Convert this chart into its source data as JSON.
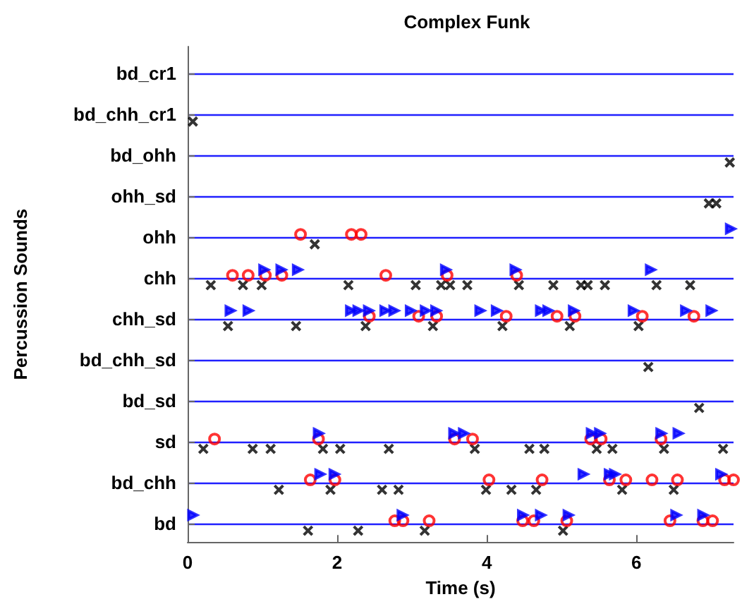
{
  "chart_data": {
    "type": "scatter",
    "orientation": "horizontal",
    "title": "Complex Funk",
    "xlabel": "Time (s)",
    "ylabel": "Percussion Sounds",
    "categories": [
      "bd_cr1",
      "bd_chh_cr1",
      "bd_ohh",
      "ohh_sd",
      "ohh",
      "chh",
      "chh_sd",
      "bd_chh_sd",
      "bd_sd",
      "sd",
      "bd_chh",
      "bd"
    ],
    "xlim": [
      0,
      7.3
    ],
    "xticks": [
      0,
      2,
      4,
      6
    ],
    "grid": "y",
    "series": [
      {
        "color": "#000000",
        "marker": "cross",
        "values": [
          null,
          0.07,
          7.25,
          6.97,
          1.7,
          0.31,
          0.54,
          6.16,
          6.84,
          0.21,
          1.22,
          1.61
        ]
      },
      {
        "color": "#000000",
        "marker": "cross",
        "values": [
          null,
          null,
          null,
          7.07,
          null,
          0.74,
          1.45,
          null,
          null,
          0.87,
          1.91,
          2.28
        ]
      },
      {
        "color": "#000000",
        "marker": "cross",
        "values": [
          null,
          null,
          null,
          null,
          null,
          0.99,
          2.38,
          null,
          null,
          1.11,
          2.6,
          3.17
        ]
      },
      {
        "color": "#000000",
        "marker": "cross",
        "values": [
          null,
          null,
          null,
          null,
          null,
          2.15,
          3.28,
          null,
          null,
          1.81,
          2.82,
          5.02
        ]
      },
      {
        "color": "#000000",
        "marker": "cross",
        "values": [
          null,
          null,
          null,
          null,
          null,
          3.05,
          4.21,
          null,
          null,
          2.04,
          3.99,
          null
        ]
      },
      {
        "color": "#000000",
        "marker": "cross",
        "values": [
          null,
          null,
          null,
          null,
          null,
          3.39,
          5.11,
          null,
          null,
          2.69,
          4.33,
          null
        ]
      },
      {
        "color": "#000000",
        "marker": "cross",
        "values": [
          null,
          null,
          null,
          null,
          null,
          3.51,
          6.03,
          null,
          null,
          3.84,
          4.66,
          null
        ]
      },
      {
        "color": "#000000",
        "marker": "cross",
        "values": [
          null,
          null,
          null,
          null,
          null,
          3.74,
          null,
          null,
          null,
          4.57,
          5.81,
          null
        ]
      },
      {
        "color": "#000000",
        "marker": "cross",
        "values": [
          null,
          null,
          null,
          null,
          null,
          4.43,
          null,
          null,
          null,
          4.77,
          6.5,
          null
        ]
      },
      {
        "color": "#000000",
        "marker": "cross",
        "values": [
          null,
          null,
          null,
          null,
          null,
          4.89,
          null,
          null,
          null,
          5.47,
          null,
          null
        ]
      },
      {
        "color": "#000000",
        "marker": "cross",
        "values": [
          null,
          null,
          null,
          null,
          null,
          5.26,
          null,
          null,
          null,
          5.68,
          null,
          null
        ]
      },
      {
        "color": "#000000",
        "marker": "cross",
        "values": [
          null,
          null,
          null,
          null,
          null,
          5.35,
          null,
          null,
          null,
          6.37,
          null,
          null
        ]
      },
      {
        "color": "#000000",
        "marker": "cross",
        "values": [
          null,
          null,
          null,
          null,
          null,
          5.58,
          null,
          null,
          null,
          7.16,
          null,
          null
        ]
      },
      {
        "color": "#000000",
        "marker": "cross",
        "values": [
          null,
          null,
          null,
          null,
          null,
          6.27,
          null,
          null,
          null,
          null,
          null,
          null
        ]
      },
      {
        "color": "#000000",
        "marker": "cross",
        "values": [
          null,
          null,
          null,
          null,
          null,
          6.72,
          null,
          null,
          null,
          null,
          null,
          null
        ]
      },
      {
        "color": "#ff0000",
        "marker": "circle",
        "values": [
          null,
          null,
          null,
          null,
          1.51,
          0.6,
          2.43,
          null,
          null,
          0.36,
          1.64,
          2.77
        ]
      },
      {
        "color": "#ff0000",
        "marker": "circle",
        "values": [
          null,
          null,
          null,
          null,
          2.19,
          0.81,
          3.09,
          null,
          null,
          1.75,
          1.97,
          2.88
        ]
      },
      {
        "color": "#ff0000",
        "marker": "circle",
        "values": [
          null,
          null,
          null,
          null,
          2.32,
          1.04,
          3.33,
          null,
          null,
          3.57,
          4.03,
          3.23
        ]
      },
      {
        "color": "#ff0000",
        "marker": "circle",
        "values": [
          null,
          null,
          null,
          null,
          null,
          1.26,
          4.26,
          null,
          null,
          3.81,
          4.74,
          4.48
        ]
      },
      {
        "color": "#ff0000",
        "marker": "circle",
        "values": [
          null,
          null,
          null,
          null,
          null,
          2.65,
          4.94,
          null,
          null,
          5.39,
          5.64,
          4.63
        ]
      },
      {
        "color": "#ff0000",
        "marker": "circle",
        "values": [
          null,
          null,
          null,
          null,
          null,
          3.47,
          5.18,
          null,
          null,
          5.53,
          5.86,
          5.07
        ]
      },
      {
        "color": "#ff0000",
        "marker": "circle",
        "values": [
          null,
          null,
          null,
          null,
          null,
          4.4,
          6.08,
          null,
          null,
          6.33,
          6.21,
          6.45
        ]
      },
      {
        "color": "#ff0000",
        "marker": "circle",
        "values": [
          null,
          null,
          null,
          null,
          null,
          null,
          6.77,
          null,
          null,
          null,
          6.55,
          6.89
        ]
      },
      {
        "color": "#ff0000",
        "marker": "circle",
        "values": [
          null,
          null,
          null,
          null,
          null,
          null,
          null,
          null,
          null,
          null,
          7.18,
          7.02
        ]
      },
      {
        "color": "#ff0000",
        "marker": "circle",
        "values": [
          null,
          null,
          null,
          null,
          null,
          null,
          null,
          null,
          null,
          null,
          7.3,
          null
        ]
      },
      {
        "color": "#0000ff",
        "marker": "triangle",
        "values": [
          null,
          null,
          null,
          null,
          7.26,
          1.02,
          0.57,
          null,
          null,
          1.75,
          1.77,
          0.07
        ]
      },
      {
        "color": "#0000ff",
        "marker": "triangle",
        "values": [
          null,
          null,
          null,
          null,
          null,
          1.25,
          0.81,
          null,
          null,
          3.56,
          1.96,
          2.87
        ]
      },
      {
        "color": "#0000ff",
        "marker": "triangle",
        "values": [
          null,
          null,
          null,
          null,
          null,
          1.47,
          2.18,
          null,
          null,
          3.69,
          5.29,
          4.48
        ]
      },
      {
        "color": "#0000ff",
        "marker": "triangle",
        "values": [
          null,
          null,
          null,
          null,
          null,
          3.45,
          2.28,
          null,
          null,
          5.4,
          5.64,
          4.72
        ]
      },
      {
        "color": "#0000ff",
        "marker": "triangle",
        "values": [
          null,
          null,
          null,
          null,
          null,
          4.38,
          2.42,
          null,
          null,
          5.51,
          5.71,
          5.09
        ]
      },
      {
        "color": "#0000ff",
        "marker": "triangle",
        "values": [
          null,
          null,
          null,
          null,
          null,
          6.19,
          2.64,
          null,
          null,
          6.33,
          7.13,
          6.53
        ]
      },
      {
        "color": "#0000ff",
        "marker": "triangle",
        "values": [
          null,
          null,
          null,
          null,
          null,
          null,
          2.76,
          null,
          null,
          6.56,
          null,
          6.89
        ]
      },
      {
        "color": "#0000ff",
        "marker": "triangle",
        "values": [
          null,
          null,
          null,
          null,
          null,
          null,
          2.98,
          null,
          null,
          null,
          null,
          null
        ]
      },
      {
        "color": "#0000ff",
        "marker": "triangle",
        "values": [
          null,
          null,
          null,
          null,
          null,
          null,
          3.18,
          null,
          null,
          null,
          null,
          null
        ]
      },
      {
        "color": "#0000ff",
        "marker": "triangle",
        "values": [
          null,
          null,
          null,
          null,
          null,
          null,
          3.32,
          null,
          null,
          null,
          null,
          null
        ]
      },
      {
        "color": "#0000ff",
        "marker": "triangle",
        "values": [
          null,
          null,
          null,
          null,
          null,
          null,
          3.91,
          null,
          null,
          null,
          null,
          null
        ]
      },
      {
        "color": "#0000ff",
        "marker": "triangle",
        "values": [
          null,
          null,
          null,
          null,
          null,
          null,
          4.13,
          null,
          null,
          null,
          null,
          null
        ]
      },
      {
        "color": "#0000ff",
        "marker": "triangle",
        "values": [
          null,
          null,
          null,
          null,
          null,
          null,
          4.72,
          null,
          null,
          null,
          null,
          null
        ]
      },
      {
        "color": "#0000ff",
        "marker": "triangle",
        "values": [
          null,
          null,
          null,
          null,
          null,
          null,
          4.82,
          null,
          null,
          null,
          null,
          null
        ]
      },
      {
        "color": "#0000ff",
        "marker": "triangle",
        "values": [
          null,
          null,
          null,
          null,
          null,
          null,
          5.16,
          null,
          null,
          null,
          null,
          null
        ]
      },
      {
        "color": "#0000ff",
        "marker": "triangle",
        "values": [
          null,
          null,
          null,
          null,
          null,
          null,
          5.96,
          null,
          null,
          null,
          null,
          null
        ]
      },
      {
        "color": "#0000ff",
        "marker": "triangle",
        "values": [
          null,
          null,
          null,
          null,
          null,
          null,
          6.66,
          null,
          null,
          null,
          null,
          null
        ]
      },
      {
        "color": "#0000ff",
        "marker": "triangle",
        "values": [
          null,
          null,
          null,
          null,
          null,
          null,
          7.0,
          null,
          null,
          null,
          null,
          null
        ]
      }
    ]
  }
}
